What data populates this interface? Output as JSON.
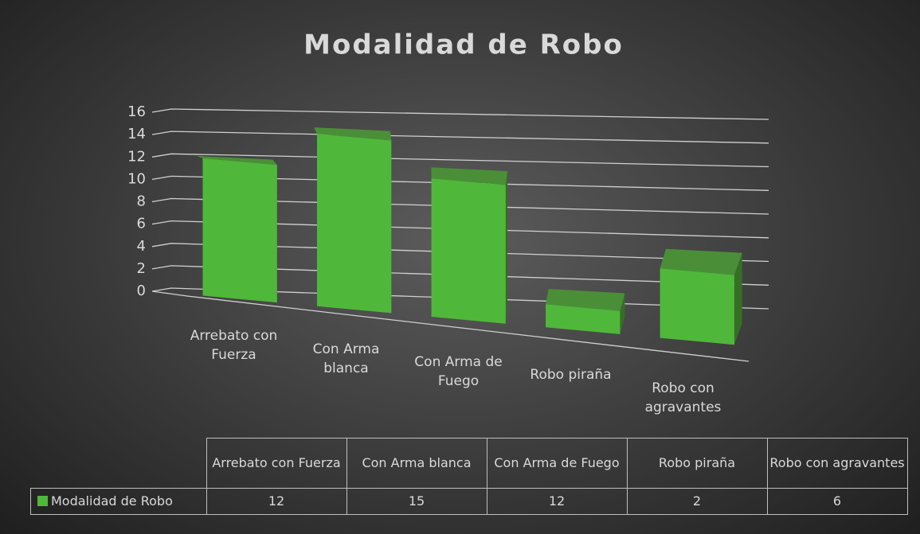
{
  "chart_data": {
    "type": "bar",
    "title": "Modalidad de Robo",
    "categories": [
      "Arrebato con Fuerza",
      "Con Arma blanca",
      "Con Arma de Fuego",
      "Robo piraña",
      "Robo con agravantes"
    ],
    "series": [
      {
        "name": "Modalidad de Robo",
        "color": "#4fb83a",
        "values": [
          12,
          15,
          12,
          2,
          6
        ]
      }
    ],
    "ylim": [
      0,
      16
    ],
    "yticks": [
      0,
      2,
      4,
      6,
      8,
      10,
      12,
      14,
      16
    ],
    "grid": true
  }
}
